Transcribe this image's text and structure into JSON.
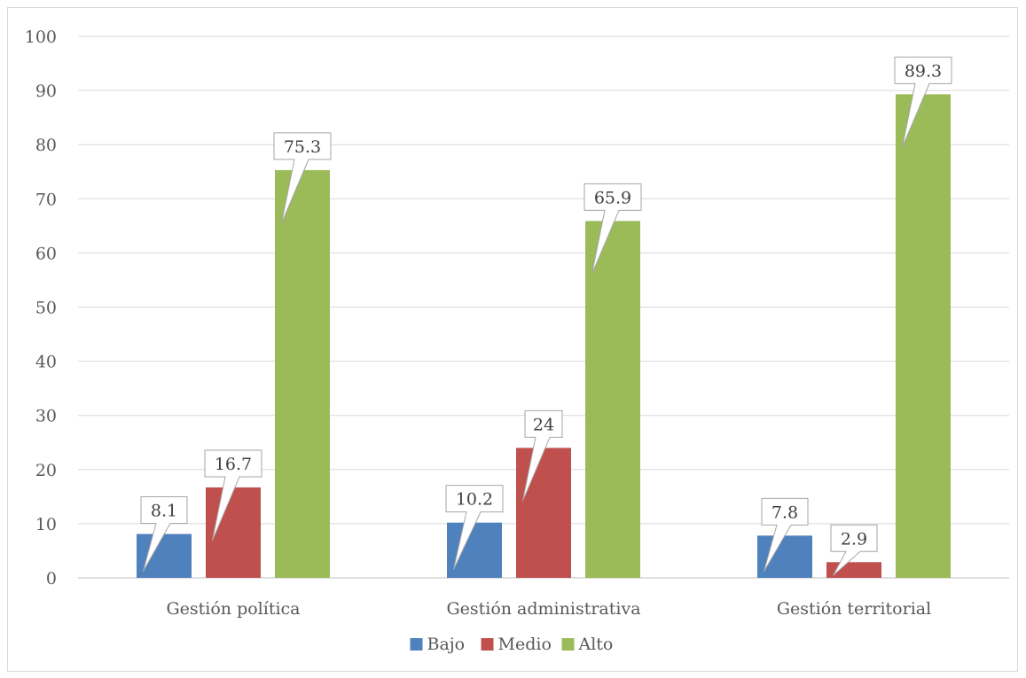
{
  "chart_data": {
    "type": "bar",
    "title": "",
    "xlabel": "",
    "ylabel": "",
    "categories": [
      "Gestión política",
      "Gestión administrativa",
      "Gestión territorial"
    ],
    "series": [
      {
        "name": "Bajo",
        "values": [
          8.1,
          10.2,
          7.8
        ],
        "labels": [
          "8.1",
          "10.2",
          "7.8"
        ],
        "color": "#4f81bd"
      },
      {
        "name": "Medio",
        "values": [
          16.7,
          24,
          2.9
        ],
        "labels": [
          "16.7",
          "24",
          "2.9"
        ],
        "color": "#c0504d"
      },
      {
        "name": "Alto",
        "values": [
          75.3,
          65.9,
          89.3
        ],
        "labels": [
          "75.3",
          "65.9",
          "89.3"
        ],
        "color": "#9bbb59"
      }
    ],
    "ylim": [
      0,
      100
    ],
    "yticks": [
      "0",
      "10",
      "20",
      "30",
      "40",
      "50",
      "60",
      "70",
      "80",
      "90",
      "100"
    ],
    "grid": true,
    "legend_position": "bottom"
  }
}
